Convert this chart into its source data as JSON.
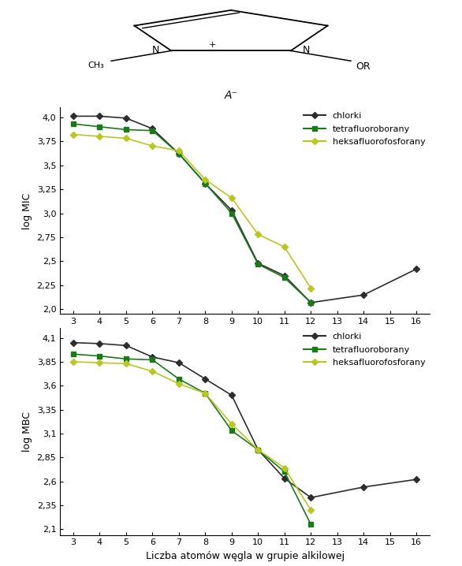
{
  "x": [
    3,
    4,
    5,
    6,
    7,
    8,
    9,
    10,
    11,
    12,
    13,
    14,
    15,
    16
  ],
  "mic_chlorki": [
    4.01,
    4.01,
    3.99,
    3.88,
    3.62,
    3.31,
    3.03,
    2.48,
    2.35,
    2.07,
    null,
    2.15,
    null,
    2.42
  ],
  "mic_tetrafluoroborany": [
    3.93,
    3.9,
    3.87,
    3.86,
    3.62,
    3.31,
    3.0,
    2.47,
    2.33,
    2.07,
    null,
    null,
    null,
    null
  ],
  "mic_heksafluorofosforany": [
    3.82,
    3.8,
    3.78,
    3.7,
    3.65,
    3.35,
    3.16,
    2.78,
    2.65,
    2.22,
    null,
    null,
    null,
    null
  ],
  "mbc_chlorki": [
    4.05,
    4.04,
    4.02,
    3.9,
    3.84,
    3.67,
    3.5,
    2.93,
    2.63,
    2.43,
    null,
    2.54,
    null,
    2.62
  ],
  "mbc_tetrafluoroborany": [
    3.93,
    3.91,
    3.88,
    3.87,
    3.67,
    3.52,
    3.13,
    2.93,
    2.7,
    2.15,
    null,
    null,
    null,
    null
  ],
  "mbc_heksafluorofosforany": [
    3.85,
    3.84,
    3.83,
    3.75,
    3.62,
    3.52,
    3.2,
    2.93,
    2.74,
    2.3,
    null,
    null,
    null,
    null
  ],
  "color_chlorki": "#2d2d2d",
  "color_tetrafluoroborany": "#1a7a1a",
  "color_heksafluorofosforany": "#b8c820",
  "mic_yticks": [
    2.0,
    2.25,
    2.5,
    2.75,
    3.0,
    3.25,
    3.5,
    3.75,
    4.0
  ],
  "mic_ylim": [
    1.95,
    4.1
  ],
  "mbc_yticks": [
    2.1,
    2.35,
    2.6,
    2.85,
    3.1,
    3.35,
    3.6,
    3.85,
    4.1
  ],
  "mbc_ylim": [
    2.04,
    4.2
  ],
  "xlabel": "Liczba atomów węgla w grupie alkilowej",
  "mic_ylabel": "log MIC",
  "mbc_ylabel": "log MBC",
  "legend_labels": [
    "chlorki",
    "tetrafluoroborany",
    "heksafluorofosforany"
  ],
  "xticks": [
    3,
    4,
    5,
    6,
    7,
    8,
    9,
    10,
    11,
    12,
    13,
    14,
    15,
    16
  ]
}
